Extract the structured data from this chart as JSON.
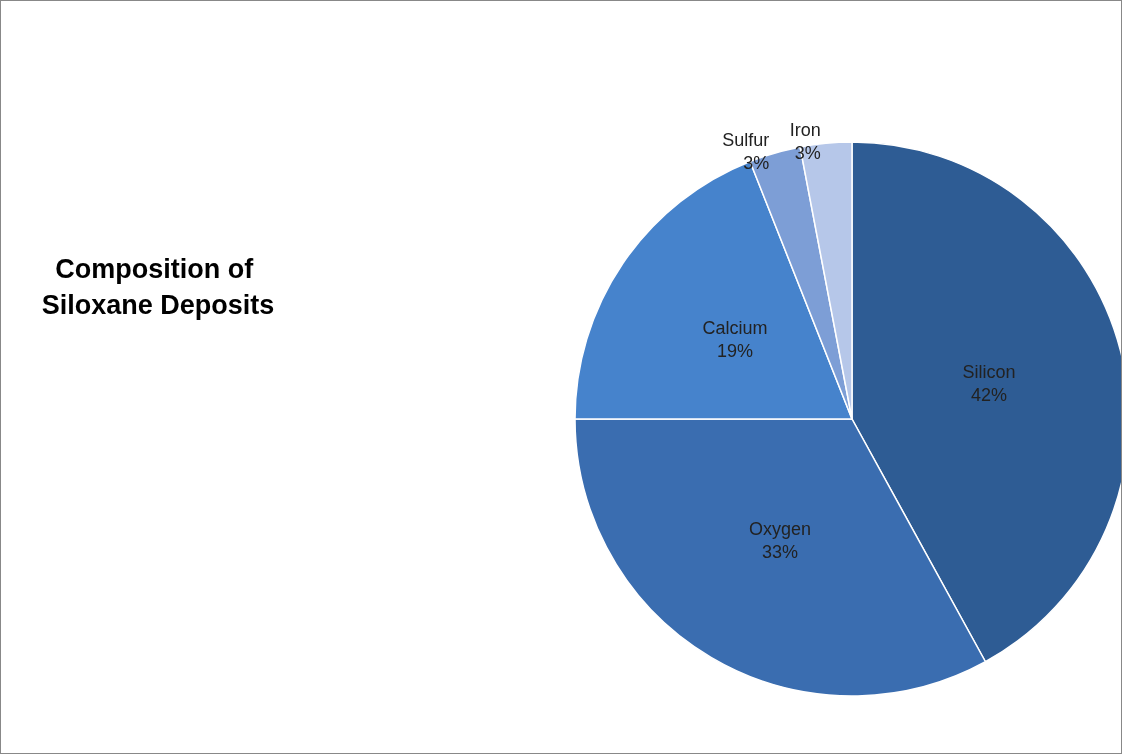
{
  "chart_data": {
    "type": "pie",
    "title": "Composition of Siloxane Deposits",
    "categories": [
      "Silicon",
      "Oxygen",
      "Calcium",
      "Sulfur",
      "Iron"
    ],
    "values": [
      42,
      33,
      19,
      3,
      3
    ],
    "colors": [
      "#2e5c94",
      "#3a6db0",
      "#4683cc",
      "#7d9ed6",
      "#b6c7e9"
    ],
    "value_labels": [
      "42%",
      "33%",
      "19%",
      "3%",
      "3%"
    ],
    "legend": false
  }
}
